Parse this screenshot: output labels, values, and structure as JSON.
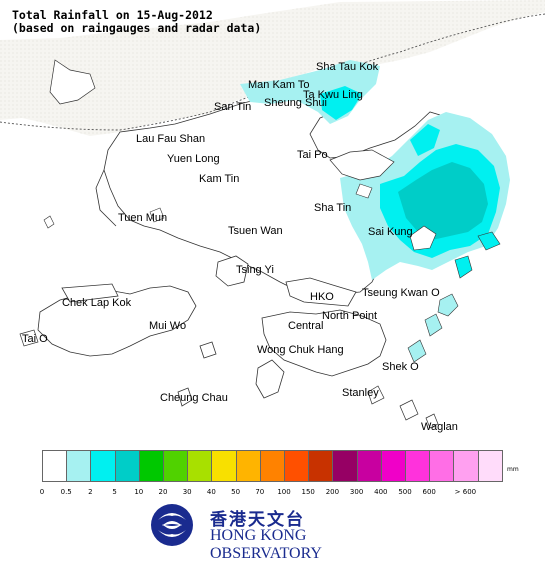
{
  "title": {
    "line1": "Total Rainfall on 15-Aug-2012",
    "line2": "(based on raingauges and radar data)"
  },
  "places": [
    {
      "id": "sha-tau-kok",
      "label": "Sha Tau Kok"
    },
    {
      "id": "man-kam-to",
      "label": "Man Kam To"
    },
    {
      "id": "ta-kwu-ling",
      "label": "Ta Kwu Ling"
    },
    {
      "id": "san-tin",
      "label": "San Tin"
    },
    {
      "id": "sheung-shui",
      "label": "Sheung Shui"
    },
    {
      "id": "lau-fau-shan",
      "label": "Lau Fau Shan"
    },
    {
      "id": "yuen-long",
      "label": "Yuen Long"
    },
    {
      "id": "kam-tin",
      "label": "Kam Tin"
    },
    {
      "id": "tai-po",
      "label": "Tai Po"
    },
    {
      "id": "tuen-mun",
      "label": "Tuen Mun"
    },
    {
      "id": "sha-tin",
      "label": "Sha Tin"
    },
    {
      "id": "tsuen-wan",
      "label": "Tsuen Wan"
    },
    {
      "id": "sai-kung",
      "label": "Sai Kung"
    },
    {
      "id": "tsing-yi",
      "label": "Tsing Yi"
    },
    {
      "id": "chek-lap-kok",
      "label": "Chek Lap Kok"
    },
    {
      "id": "hko",
      "label": "HKO"
    },
    {
      "id": "tseung-kwan-o",
      "label": "Tseung Kwan O"
    },
    {
      "id": "north-point",
      "label": "North Point"
    },
    {
      "id": "mui-wo",
      "label": "Mui Wo"
    },
    {
      "id": "central",
      "label": "Central"
    },
    {
      "id": "tai-o",
      "label": "Tai O"
    },
    {
      "id": "wong-chuk-hang",
      "label": "Wong Chuk Hang"
    },
    {
      "id": "shek-o",
      "label": "Shek O"
    },
    {
      "id": "cheung-chau",
      "label": "Cheung Chau"
    },
    {
      "id": "stanley",
      "label": "Stanley"
    },
    {
      "id": "waglan",
      "label": "Waglan"
    }
  ],
  "legend": {
    "unit": "mm",
    "colors": [
      "#ffffff",
      "#a6f1f1",
      "#00f0f0",
      "#00cdc8",
      "#00c800",
      "#50d200",
      "#a8e000",
      "#f8e000",
      "#ffb400",
      "#ff8200",
      "#ff5000",
      "#c83200",
      "#960064",
      "#c800a0",
      "#f000c8",
      "#ff32dc",
      "#ff6ee6",
      "#ffa0f0",
      "#ffdcfa"
    ],
    "ticks": [
      "0",
      "0.5",
      "2",
      "5",
      "10",
      "20",
      "30",
      "40",
      "50",
      "70",
      "100",
      "150",
      "200",
      "300",
      "400",
      "500",
      "600",
      "> 600"
    ]
  },
  "logo": {
    "chinese": "香港天文台",
    "english": "HONG KONG OBSERVATORY"
  }
}
